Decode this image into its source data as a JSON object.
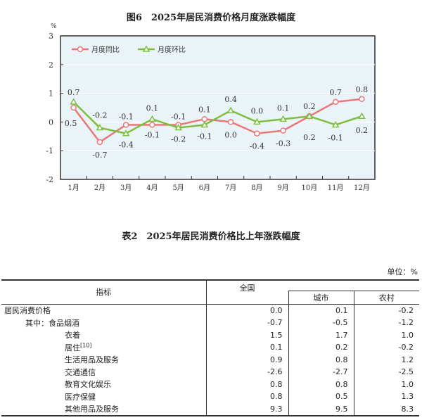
{
  "chart_data": {
    "type": "line",
    "title": "图6　2025年居民消费价格月度涨跌幅度",
    "ylabel": "%",
    "ylim": [
      -2,
      3
    ],
    "yticks": [
      "3",
      "2",
      "1",
      "0",
      "-1",
      "-2"
    ],
    "categories": [
      "1月",
      "2月",
      "3月",
      "4月",
      "5月",
      "6月",
      "7月",
      "8月",
      "9月",
      "10月",
      "11月",
      "12月"
    ],
    "grid": true,
    "legend": "top-left",
    "series": [
      {
        "name": "月度同比",
        "color": "#e8787a",
        "marker": "circle",
        "values": [
          0.5,
          -0.7,
          -0.1,
          -0.1,
          -0.1,
          0.1,
          0.0,
          -0.4,
          -0.3,
          0.2,
          0.7,
          0.8
        ],
        "labels": [
          "0.5",
          "-0.7",
          "-0.1",
          "-0.1",
          "-0.1",
          "0.1",
          "0.0",
          "-0.4",
          "-0.3",
          "0.2",
          "0.7",
          "0.8"
        ]
      },
      {
        "name": "月度环比",
        "color": "#7cbf3e",
        "marker": "triangle",
        "values": [
          0.7,
          -0.2,
          -0.4,
          0.1,
          -0.2,
          -0.1,
          0.4,
          0.0,
          0.1,
          0.2,
          -0.1,
          0.2
        ],
        "labels": [
          "0.7",
          "-0.2",
          "-0.4",
          "0.1",
          "-0.2",
          "-0.1",
          "0.4",
          "0.0",
          "0.1",
          "0.2",
          "-0.1",
          "0.2"
        ]
      }
    ]
  },
  "table": {
    "title": "表2　2025年居民消费价格比上年涨跌幅度",
    "unit": "单位：%",
    "headers": {
      "indicator": "指标",
      "national": "全国",
      "urban": "城市",
      "rural": "农村"
    },
    "rows": [
      {
        "name": "居民消费价格",
        "national": "0.0",
        "urban": "0.1",
        "rural": "-0.2"
      },
      {
        "name": "其中：食品烟酒",
        "national": "-0.7",
        "urban": "-0.5",
        "rural": "-1.2"
      },
      {
        "name": "衣着",
        "national": "1.5",
        "urban": "1.7",
        "rural": "1.0"
      },
      {
        "name": "居住",
        "note": "[10]",
        "national": "0.1",
        "urban": "0.2",
        "rural": "-0.2"
      },
      {
        "name": "生活用品及服务",
        "national": "0.9",
        "urban": "0.8",
        "rural": "1.2"
      },
      {
        "name": "交通通信",
        "national": "-2.6",
        "urban": "-2.7",
        "rural": "-2.5"
      },
      {
        "name": "教育文化娱乐",
        "national": "0.8",
        "urban": "0.8",
        "rural": "1.0"
      },
      {
        "name": "医疗保健",
        "national": "0.8",
        "urban": "0.5",
        "rural": "1.3"
      },
      {
        "name": "其他用品及服务",
        "national": "9.3",
        "urban": "9.5",
        "rural": "8.3"
      }
    ]
  }
}
